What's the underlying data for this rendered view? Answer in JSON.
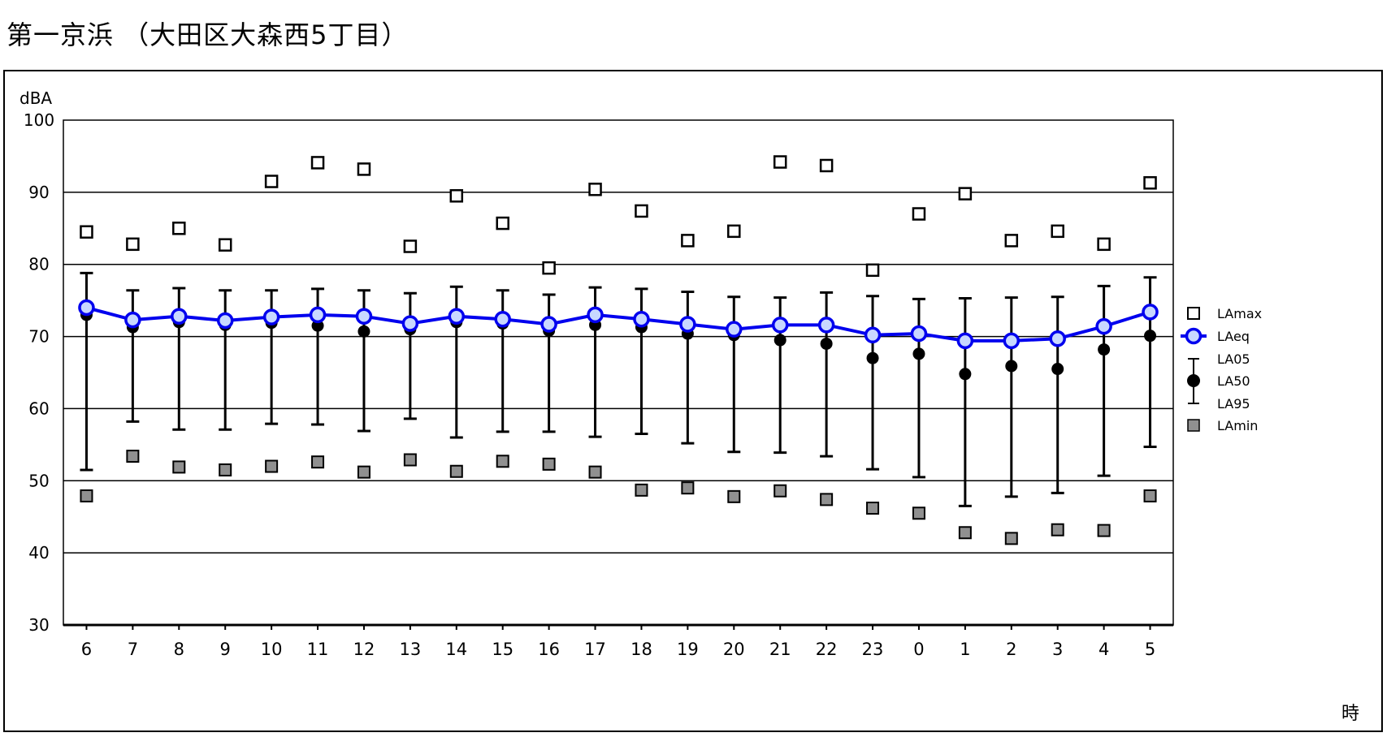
{
  "title": "第一京浜 （大田区大森西5丁目）",
  "chart_data": {
    "type": "scatter",
    "ylabel": "dBA",
    "xlabel": "時",
    "ylim": [
      30,
      100
    ],
    "yticks": [
      30,
      40,
      50,
      60,
      70,
      80,
      90,
      100
    ],
    "gridlines": "horizontal",
    "legend_position": "right",
    "categories": [
      "6",
      "7",
      "8",
      "9",
      "10",
      "11",
      "12",
      "13",
      "14",
      "15",
      "16",
      "17",
      "18",
      "19",
      "20",
      "21",
      "22",
      "23",
      "0",
      "1",
      "2",
      "3",
      "4",
      "5"
    ],
    "series": [
      {
        "name": "LAmax",
        "marker": "open-square",
        "color": "#000000",
        "values": [
          84.5,
          82.8,
          85.0,
          82.7,
          91.5,
          94.1,
          93.2,
          82.5,
          89.5,
          85.7,
          79.5,
          90.4,
          87.4,
          83.3,
          84.6,
          94.2,
          93.7,
          79.2,
          87.0,
          89.8,
          83.3,
          84.6,
          82.8,
          91.3
        ]
      },
      {
        "name": "LAeq",
        "marker": "circle-line",
        "color": "#0000ee",
        "values": [
          74.0,
          72.3,
          72.8,
          72.2,
          72.7,
          73.0,
          72.8,
          71.8,
          72.8,
          72.4,
          71.7,
          73.0,
          72.4,
          71.7,
          71.0,
          71.6,
          71.6,
          70.2,
          70.4,
          69.4,
          69.4,
          69.7,
          71.4,
          73.4
        ]
      },
      {
        "name": "LA05",
        "marker": "error-bar-top",
        "color": "#000000",
        "values": [
          78.8,
          76.4,
          76.7,
          76.4,
          76.4,
          76.6,
          76.4,
          76.0,
          76.9,
          76.4,
          75.8,
          76.8,
          76.6,
          76.2,
          75.5,
          75.4,
          76.1,
          75.6,
          75.2,
          75.3,
          75.4,
          75.5,
          77.0,
          78.2
        ]
      },
      {
        "name": "LA50",
        "marker": "filled-circle",
        "color": "#000000",
        "values": [
          73.0,
          71.3,
          72.0,
          71.6,
          71.9,
          71.5,
          70.7,
          71.0,
          72.0,
          71.8,
          70.8,
          71.6,
          71.3,
          70.4,
          70.2,
          69.5,
          69.0,
          67.0,
          67.6,
          64.8,
          65.9,
          65.5,
          68.2,
          70.1
        ]
      },
      {
        "name": "LA95",
        "marker": "error-bar-bottom",
        "color": "#000000",
        "values": [
          51.5,
          58.2,
          57.1,
          57.1,
          57.9,
          57.8,
          56.9,
          58.6,
          56.0,
          56.8,
          56.8,
          56.1,
          56.5,
          55.2,
          54.0,
          53.9,
          53.4,
          51.6,
          50.5,
          46.5,
          47.8,
          48.3,
          50.7,
          54.7
        ]
      },
      {
        "name": "LAmin",
        "marker": "filled-square",
        "color": "#909090",
        "values": [
          47.9,
          53.4,
          51.9,
          51.5,
          52.0,
          52.6,
          51.2,
          52.9,
          51.3,
          52.7,
          52.3,
          51.2,
          48.7,
          49.0,
          47.8,
          48.6,
          47.4,
          46.2,
          45.5,
          42.8,
          42.0,
          43.2,
          43.1,
          47.9
        ]
      }
    ]
  }
}
